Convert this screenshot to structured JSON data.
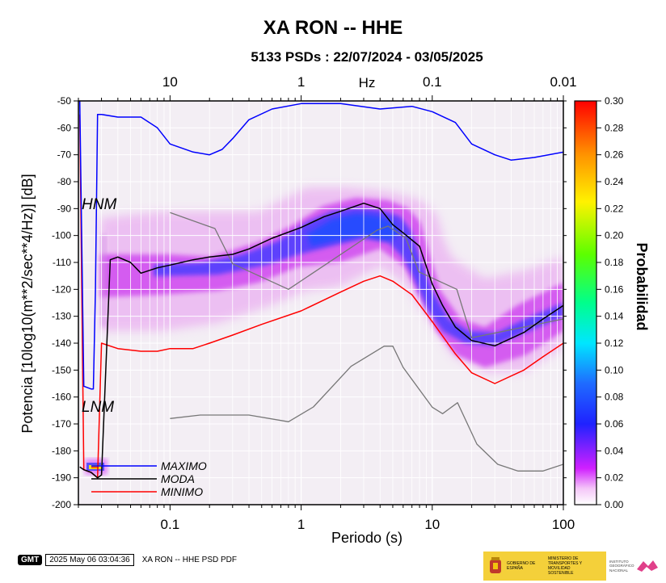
{
  "chart_data": {
    "type": "heatmap",
    "title": "XA RON -- HHE",
    "subtitle": "5133 PSDs : 22/07/2024 - 03/05/2025",
    "xlabel": "Periodo (s)",
    "ylabel": "Potencia [10log10(m**2/sec**4/Hz)] [dB]",
    "x_scale": "log",
    "xlim": [
      0.02,
      100
    ],
    "ylim": [
      -200,
      -50
    ],
    "x_ticks": [
      "0.1",
      "1",
      "10",
      "100"
    ],
    "y_ticks": [
      "-50",
      "-60",
      "-70",
      "-80",
      "-90",
      "-100",
      "-110",
      "-120",
      "-130",
      "-140",
      "-150",
      "-160",
      "-170",
      "-180",
      "-190",
      "-200"
    ],
    "top_axis": {
      "label": "Hz",
      "ticks": [
        "10",
        "1",
        "0.1",
        "0.01"
      ]
    },
    "colorbar": {
      "label": "Probabilidad",
      "range": [
        0.0,
        0.3
      ],
      "ticks": [
        "0.00",
        "0.02",
        "0.04",
        "0.06",
        "0.08",
        "0.10",
        "0.12",
        "0.14",
        "0.16",
        "0.18",
        "0.20",
        "0.22",
        "0.24",
        "0.26",
        "0.28",
        "0.30"
      ]
    },
    "annotations": [
      "HNM",
      "LNM"
    ],
    "legend": {
      "placement": "bottom-left",
      "entries": [
        {
          "name": "MAXIMO",
          "color": "#0000ff"
        },
        {
          "name": "MODA",
          "color": "#000000"
        },
        {
          "name": "MINIMO",
          "color": "#ff0000"
        }
      ]
    },
    "grid": true,
    "series": [
      {
        "name": "MAXIMO",
        "color": "#0000ff",
        "x": [
          0.0205,
          0.022,
          0.025,
          0.026,
          0.027,
          0.028,
          0.03,
          0.04,
          0.06,
          0.08,
          0.1,
          0.15,
          0.2,
          0.25,
          0.3,
          0.4,
          0.6,
          1.0,
          2.0,
          4.0,
          7.0,
          10.0,
          15.0,
          20.0,
          30.0,
          40.0,
          60.0,
          100.0
        ],
        "y": [
          -50,
          -156,
          -157,
          -157,
          -120,
          -55,
          -55,
          -56,
          -56,
          -60,
          -66,
          -69,
          -70,
          -68,
          -64,
          -57,
          -53,
          -51,
          -51,
          -53,
          -52,
          -54,
          -58,
          -66,
          -70,
          -72,
          -71,
          -69
        ]
      },
      {
        "name": "MODA",
        "color": "#000000",
        "x": [
          0.0205,
          0.022,
          0.025,
          0.028,
          0.03,
          0.035,
          0.04,
          0.05,
          0.06,
          0.08,
          0.1,
          0.15,
          0.2,
          0.3,
          0.4,
          0.6,
          1.0,
          1.5,
          2.0,
          3.0,
          4.0,
          5.0,
          6.0,
          8.0,
          10.0,
          12.0,
          15.0,
          20.0,
          30.0,
          50.0,
          70.0,
          100.0
        ],
        "y": [
          -186,
          -187,
          -188,
          -190,
          -189,
          -109,
          -108,
          -110,
          -114,
          -112,
          -111,
          -109,
          -108,
          -107,
          -105,
          -101,
          -97,
          -93,
          -91,
          -88,
          -90,
          -96,
          -99,
          -104,
          -118,
          -126,
          -134,
          -139,
          -141,
          -136,
          -131,
          -126
        ]
      },
      {
        "name": "MINIMO",
        "color": "#ff0000",
        "x": [
          0.0205,
          0.022,
          0.025,
          0.028,
          0.03,
          0.04,
          0.06,
          0.08,
          0.1,
          0.15,
          0.2,
          0.3,
          0.5,
          1.0,
          2.0,
          3.0,
          4.0,
          5.0,
          7.0,
          10.0,
          15.0,
          20.0,
          30.0,
          50.0,
          70.0,
          100.0
        ],
        "y": [
          -55,
          -187,
          -188,
          -190,
          -140,
          -142,
          -143,
          -143,
          -142,
          -142,
          -140,
          -137,
          -133,
          -128,
          -121,
          -117,
          -115,
          -117,
          -122,
          -132,
          -144,
          -151,
          -155,
          -150,
          -145,
          -140
        ]
      },
      {
        "name": "HNM",
        "color": "#777777",
        "x": [
          0.1,
          0.22,
          0.3,
          0.8,
          3.8,
          4.6,
          6.3,
          7.9,
          15.4,
          20.0,
          100.0
        ],
        "y": [
          -91.5,
          -97.4,
          -110.5,
          -120,
          -98,
          -96.5,
          -101,
          -113.5,
          -120,
          -138,
          -131
        ]
      },
      {
        "name": "LNM",
        "color": "#777777",
        "x": [
          0.1,
          0.17,
          0.4,
          0.8,
          1.24,
          2.4,
          4.3,
          5.0,
          6.0,
          10.0,
          12.0,
          15.6,
          21.9,
          31.6,
          45.0,
          70.0,
          100.0
        ],
        "y": [
          -168,
          -166.7,
          -166.7,
          -169.2,
          -163.7,
          -148.6,
          -141.1,
          -141.1,
          -149,
          -163.8,
          -166.2,
          -162.1,
          -177.5,
          -185,
          -187.5,
          -187.5,
          -185
        ]
      }
    ]
  },
  "footer": {
    "gmt_logo": "GMT",
    "timestamp": "2025 May 06 03:04:36",
    "caption": "XA RON -- HHE PSD PDF"
  },
  "logos": {
    "gov_line1": "GOBIERNO DE ESPAÑA",
    "gov_line2": "MINISTERIO DE TRANSPORTES Y MOVILIDAD SOSTENIBLE",
    "ign": "INSTITUTO GEOGRÁFICO NACIONAL"
  }
}
